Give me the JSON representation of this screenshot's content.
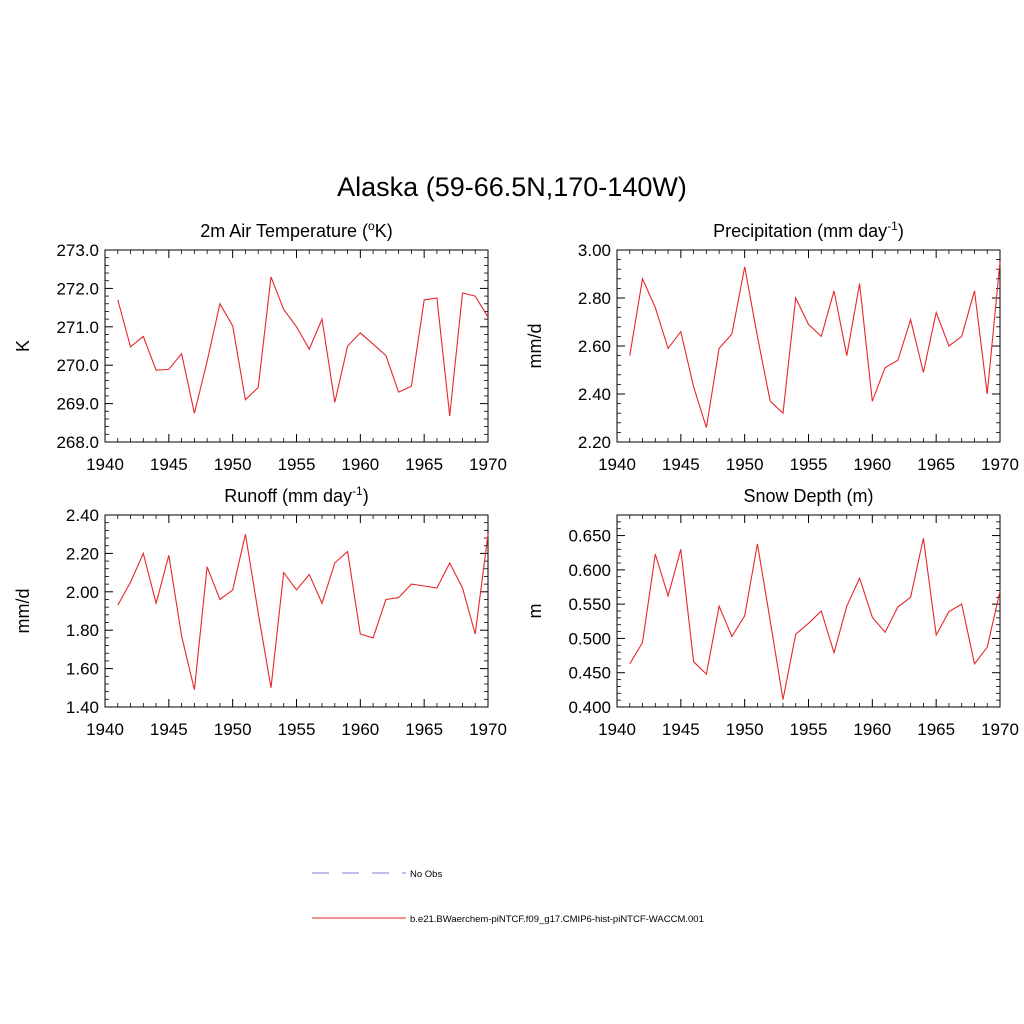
{
  "figure": {
    "title": "Alaska (59-66.5N,170-140W)"
  },
  "legend": {
    "obs_label": "No Obs",
    "obs_color": "#9999dd",
    "model_label": "b.e21.BWaerchem-piNTCF.f09_g17.CMIP6-hist-piNTCF-WACCM.001",
    "model_color": "#e8262b"
  },
  "chart_data": [
    {
      "type": "line",
      "title": "2m Air Temperature (",
      "title_sup": "o",
      "title_end": "K)",
      "ylabel": "K",
      "xlim": [
        1940,
        1970
      ],
      "ylim": [
        268.0,
        273.0
      ],
      "xticks": [
        "1940",
        "1945",
        "1950",
        "1955",
        "1960",
        "1965",
        "1970"
      ],
      "yticks": [
        "268.0",
        "269.0",
        "270.0",
        "271.0",
        "272.0",
        "273.0"
      ],
      "x": [
        1941,
        1942,
        1943,
        1944,
        1945,
        1946,
        1947,
        1948,
        1949,
        1950,
        1951,
        1952,
        1953,
        1954,
        1955,
        1956,
        1957,
        1958,
        1959,
        1960,
        1961,
        1962,
        1963,
        1964,
        1965,
        1966,
        1967,
        1968,
        1969,
        1970
      ],
      "series": [
        {
          "values": [
            271.7,
            270.48,
            270.75,
            269.87,
            269.89,
            270.3,
            268.75,
            270.1,
            271.6,
            271.02,
            269.1,
            269.42,
            272.3,
            271.45,
            271.0,
            270.42,
            271.2,
            269.03,
            270.5,
            270.84,
            270.55,
            270.25,
            269.3,
            269.45,
            271.7,
            271.75,
            268.68,
            271.88,
            271.8,
            271.25
          ]
        }
      ]
    },
    {
      "type": "line",
      "title": "Precipitation (mm day",
      "title_sup": "-1",
      "title_end": ")",
      "ylabel": "mm/d",
      "xlim": [
        1940,
        1970
      ],
      "ylim": [
        2.2,
        3.0
      ],
      "xticks": [
        "1940",
        "1945",
        "1950",
        "1955",
        "1960",
        "1965",
        "1970"
      ],
      "yticks": [
        "2.20",
        "2.40",
        "2.60",
        "2.80",
        "3.00"
      ],
      "x": [
        1941,
        1942,
        1943,
        1944,
        1945,
        1946,
        1947,
        1948,
        1949,
        1950,
        1951,
        1952,
        1953,
        1954,
        1955,
        1956,
        1957,
        1958,
        1959,
        1960,
        1961,
        1962,
        1963,
        1964,
        1965,
        1966,
        1967,
        1968,
        1969,
        1970
      ],
      "series": [
        {
          "values": [
            2.56,
            2.88,
            2.76,
            2.59,
            2.66,
            2.43,
            2.26,
            2.59,
            2.65,
            2.93,
            2.64,
            2.37,
            2.32,
            2.8,
            2.69,
            2.64,
            2.83,
            2.56,
            2.86,
            2.37,
            2.51,
            2.54,
            2.71,
            2.49,
            2.74,
            2.6,
            2.64,
            2.83,
            2.4,
            2.95
          ]
        }
      ]
    },
    {
      "type": "line",
      "title": "Runoff (mm day",
      "title_sup": "-1",
      "title_end": ")",
      "ylabel": "mm/d",
      "xlim": [
        1940,
        1970
      ],
      "ylim": [
        1.4,
        2.4
      ],
      "xticks": [
        "1940",
        "1945",
        "1950",
        "1955",
        "1960",
        "1965",
        "1970"
      ],
      "yticks": [
        "1.40",
        "1.60",
        "1.80",
        "2.00",
        "2.20",
        "2.40"
      ],
      "x": [
        1941,
        1942,
        1943,
        1944,
        1945,
        1946,
        1947,
        1948,
        1949,
        1950,
        1951,
        1952,
        1953,
        1954,
        1955,
        1956,
        1957,
        1958,
        1959,
        1960,
        1961,
        1962,
        1963,
        1964,
        1965,
        1966,
        1967,
        1968,
        1969,
        1970
      ],
      "series": [
        {
          "values": [
            1.93,
            2.05,
            2.2,
            1.94,
            2.19,
            1.77,
            1.49,
            2.13,
            1.96,
            2.01,
            2.3,
            1.89,
            1.5,
            2.1,
            2.01,
            2.09,
            1.94,
            2.15,
            2.21,
            1.78,
            1.76,
            1.96,
            1.97,
            2.04,
            2.03,
            2.02,
            2.15,
            2.02,
            1.78,
            2.3
          ]
        }
      ]
    },
    {
      "type": "line",
      "title": "Snow Depth (m)",
      "title_sup": "",
      "title_end": "",
      "ylabel": "m",
      "xlim": [
        1940,
        1970
      ],
      "ylim": [
        0.4,
        0.68
      ],
      "xticks": [
        "1940",
        "1945",
        "1950",
        "1955",
        "1960",
        "1965",
        "1970"
      ],
      "yticks": [
        "0.400",
        "0.450",
        "0.500",
        "0.550",
        "0.600",
        "0.650"
      ],
      "x": [
        1941,
        1942,
        1943,
        1944,
        1945,
        1946,
        1947,
        1948,
        1949,
        1950,
        1951,
        1952,
        1953,
        1954,
        1955,
        1956,
        1957,
        1958,
        1959,
        1960,
        1961,
        1962,
        1963,
        1964,
        1965,
        1966,
        1967,
        1968,
        1969,
        1970
      ],
      "series": [
        {
          "values": [
            0.463,
            0.494,
            0.623,
            0.562,
            0.63,
            0.466,
            0.448,
            0.547,
            0.503,
            0.533,
            0.638,
            0.526,
            0.411,
            0.506,
            0.522,
            0.54,
            0.479,
            0.547,
            0.588,
            0.531,
            0.509,
            0.546,
            0.56,
            0.646,
            0.505,
            0.539,
            0.55,
            0.463,
            0.487,
            0.569
          ]
        }
      ]
    }
  ]
}
